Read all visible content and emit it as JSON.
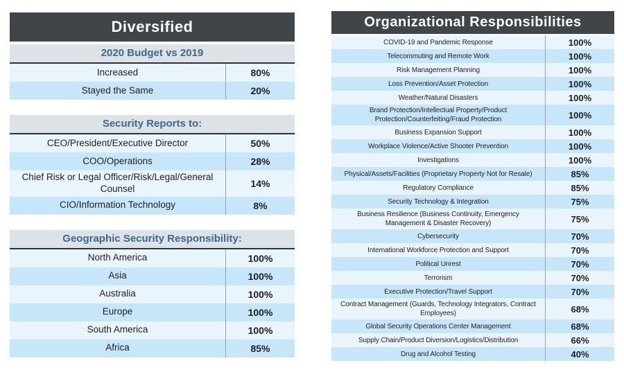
{
  "colors": {
    "title_bar_bg": "#3f4549",
    "title_text": "#ffffff",
    "section_header_bg": "#dde2e6",
    "section_header_text": "#3e688c",
    "row_light_bg": "#eaf4fc",
    "row_blue_bg": "#c8e6fa",
    "row_text": "#1e1e20",
    "column_divider": "#98a0a6",
    "header_underline": "#2c3237"
  },
  "chart_data": [
    {
      "type": "table",
      "title": "Diversified",
      "sections": [
        {
          "header": "2020 Budget vs 2019",
          "rows": [
            {
              "label": "Increased",
              "value": "80%"
            },
            {
              "label": "Stayed the Same",
              "value": "20%"
            }
          ]
        },
        {
          "header": "Security Reports to:",
          "rows": [
            {
              "label": "CEO/President/Executive Director",
              "value": "50%"
            },
            {
              "label": "COO/Operations",
              "value": "28%"
            },
            {
              "label": "Chief Risk or Legal Officer/Risk/Legal/General Counsel",
              "value": "14%"
            },
            {
              "label": "CIO/Information Technology",
              "value": "8%"
            }
          ]
        },
        {
          "header": "Geographic Security Responsibility:",
          "rows": [
            {
              "label": "North America",
              "value": "100%"
            },
            {
              "label": "Asia",
              "value": "100%"
            },
            {
              "label": "Australia",
              "value": "100%"
            },
            {
              "label": "Europe",
              "value": "100%"
            },
            {
              "label": "South America",
              "value": "100%"
            },
            {
              "label": "Africa",
              "value": "85%"
            }
          ]
        }
      ]
    },
    {
      "type": "table",
      "title": "Organizational Responsibilities",
      "rows": [
        {
          "label": "COVID-19 and Pandemic Response",
          "value": "100%"
        },
        {
          "label": "Telecommuting and Remote Work",
          "value": "100%"
        },
        {
          "label": "Risk Management Planning",
          "value": "100%"
        },
        {
          "label": "Loss Prevention/Asset Protection",
          "value": "100%"
        },
        {
          "label": "Weather/Natural Disasters",
          "value": "100%"
        },
        {
          "label": "Brand Protection/Intellectual Property/Product Protection/Counterfeiting/Fraud Protection",
          "value": "100%"
        },
        {
          "label": "Business Expansion Support",
          "value": "100%"
        },
        {
          "label": "Workplace Violence/Active Shooter Prevention",
          "value": "100%"
        },
        {
          "label": "Investigations",
          "value": "100%"
        },
        {
          "label": "Physical/Assets/Facilities (Proprietary Property Not for Resale)",
          "value": "85%"
        },
        {
          "label": "Regulatory Compliance",
          "value": "85%"
        },
        {
          "label": "Security Technology & Integration",
          "value": "75%"
        },
        {
          "label": "Business Resilience (Business Continuity, Emergency Management & Disaster Recovery)",
          "value": "75%"
        },
        {
          "label": "Cybersecurity",
          "value": "70%"
        },
        {
          "label": "International Workforce Protection and Support",
          "value": "70%"
        },
        {
          "label": "Political Unrest",
          "value": "70%"
        },
        {
          "label": "Terrorism",
          "value": "70%"
        },
        {
          "label": "Executive Protection/Travel Support",
          "value": "70%"
        },
        {
          "label": "Contract Management (Guards, Technology Integrators, Contract Employees)",
          "value": "68%"
        },
        {
          "label": "Global Security Operations Center Management",
          "value": "68%"
        },
        {
          "label": "Supply Chain/Product Diversion/Logistics/Distribution",
          "value": "66%"
        },
        {
          "label": "Drug and Alcohol Testing",
          "value": "40%"
        }
      ]
    }
  ]
}
